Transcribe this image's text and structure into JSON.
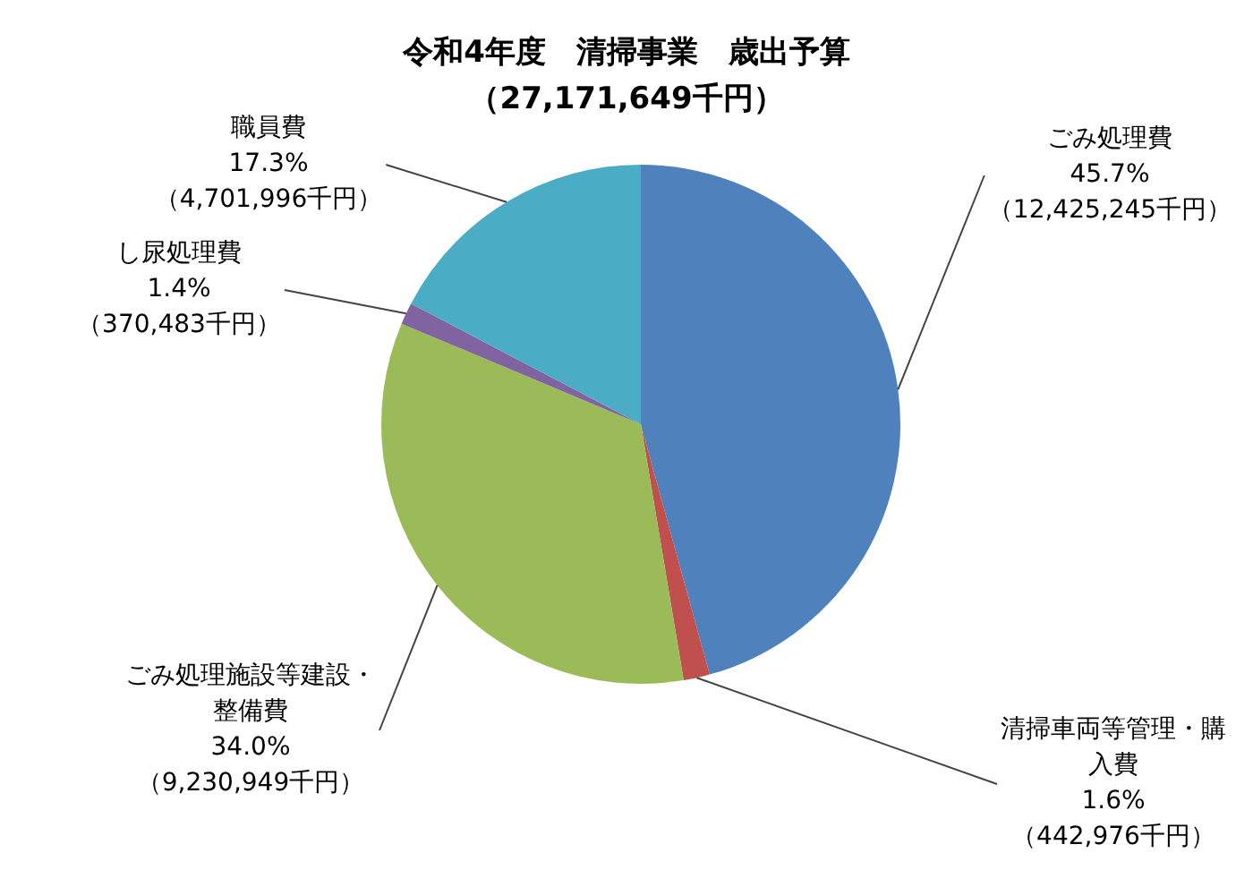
{
  "chart_data": {
    "type": "pie",
    "title": "令和4年度　清掃事業　歳出予算",
    "subtitle": "（27,171,649千円）",
    "categories": [
      "ごみ処理費",
      "清掃車両等管理・購入費",
      "ごみ処理施設等建設・整備費",
      "し尿処理費",
      "職員費"
    ],
    "values": [
      12425245,
      442976,
      9230949,
      370483,
      4701996
    ],
    "value_labels": [
      "45.7%\n（12,425,245千円）",
      "1.6%\n（442,976千円）",
      "34.0%\n（9,230,949千円）",
      "1.4%\n（370,483千円）",
      "17.3%\n（4,701,996千円）"
    ],
    "colors": [
      "#4f81bd",
      "#c0504d",
      "#9bbb59",
      "#8064a2",
      "#4bacc6"
    ],
    "legend": false
  }
}
